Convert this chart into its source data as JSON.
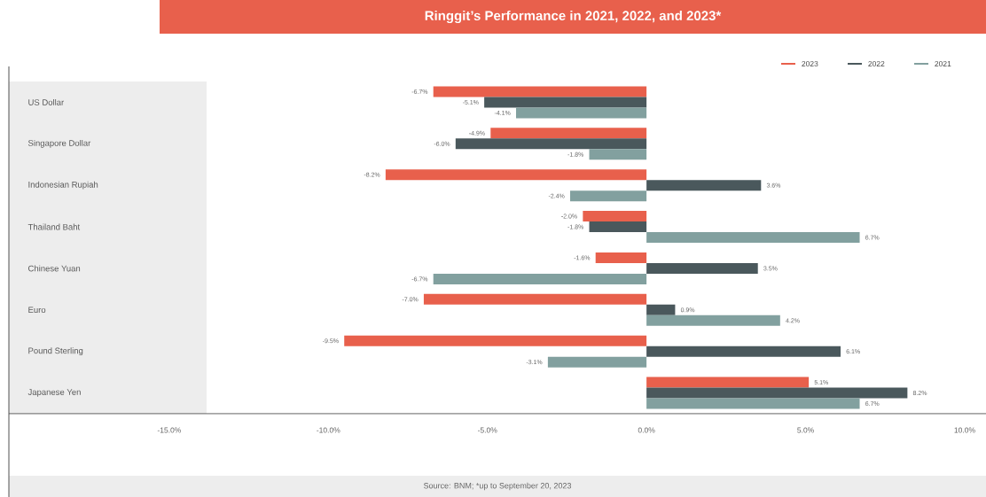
{
  "chart_data": {
    "type": "bar",
    "orientation": "horizontal",
    "title": "Ringgit’s Performance in 2021, 2022, and 2023*",
    "categories": [
      "US Dollar",
      "Singapore Dollar",
      "Indonesian Rupiah",
      "Thailand Baht",
      "Chinese Yuan",
      "Euro",
      "Pound Sterling",
      "Japanese Yen"
    ],
    "series": [
      {
        "name": "2023",
        "color": "#e8604c",
        "values": [
          -6.7,
          -4.9,
          -8.2,
          -2.0,
          -1.6,
          -7.0,
          -9.5,
          5.1
        ],
        "value_labels": [
          "-6.7%",
          "-4.9%",
          "-8.2%",
          "-2.0%",
          "-1.6%",
          "-7.0%",
          "-9.5%",
          "5.1%"
        ]
      },
      {
        "name": "2022",
        "color": "#4a585c",
        "values": [
          -5.1,
          -6.0,
          3.6,
          -1.8,
          3.5,
          0.9,
          6.1,
          8.2
        ],
        "value_labels": [
          "-5.1%",
          "-6.0%",
          "3.6%",
          "-1.8%",
          "3.5%",
          "0.9%",
          "6.1%",
          "8.2%"
        ]
      },
      {
        "name": "2021",
        "color": "#82a09f",
        "values": [
          -4.1,
          -1.8,
          -2.4,
          6.7,
          -6.7,
          4.2,
          -3.1,
          6.7
        ],
        "value_labels": [
          "-4.1%",
          "-1.8%",
          "-2.4%",
          "6.7%",
          "-6.7%",
          "4.2%",
          "-3.1%",
          "6.7%"
        ]
      }
    ],
    "xlim": [
      -20.04,
      10.67
    ],
    "xticks": [
      {
        "value": -15,
        "label": "-15.0%"
      },
      {
        "value": -10,
        "label": "-10.0%"
      },
      {
        "value": -5,
        "label": "-5.0%"
      },
      {
        "value": 0,
        "label": "0.0%"
      },
      {
        "value": 5,
        "label": "5.0%"
      },
      {
        "value": 10,
        "label": "10.0%"
      }
    ],
    "legend": "top right",
    "annotations": [
      "Source: BNM; *up to September 20, 2023"
    ]
  }
}
